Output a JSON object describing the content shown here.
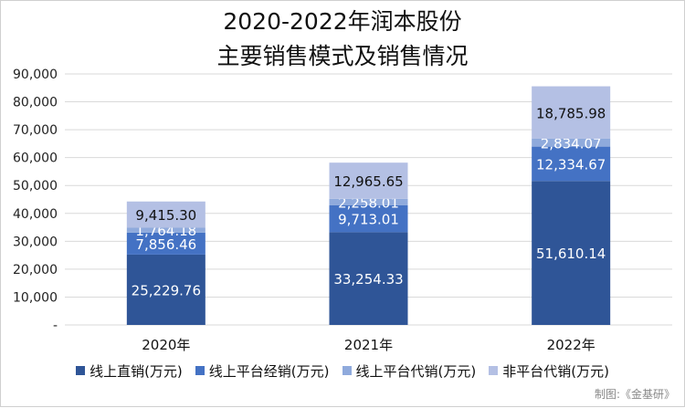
{
  "chart_data": {
    "type": "bar",
    "stacked": true,
    "title_lines": [
      "2020-2022年润本股份",
      "主要销售模式及销售情况"
    ],
    "categories": [
      "2020年",
      "2021年",
      "2022年"
    ],
    "series": [
      {
        "name": "线上直销(万元)",
        "color": "#2f5597",
        "values": [
          25229.76,
          33254.33,
          51610.14
        ],
        "labels": [
          "25,229.76",
          "33,254.33",
          "51,610.14"
        ]
      },
      {
        "name": "线上平台经销(万元)",
        "color": "#4472c4",
        "values": [
          7856.46,
          9713.01,
          12334.67
        ],
        "labels": [
          "7,856.46",
          "9,713.01",
          "12,334.67"
        ]
      },
      {
        "name": "线上平台代销(万元)",
        "color": "#8faadc",
        "values": [
          1764.18,
          2258.01,
          2834.07
        ],
        "labels": [
          "1,764.18",
          "2,258.01",
          "2,834.07"
        ]
      },
      {
        "name": "非平台代销(万元)",
        "color": "#b4c0e4",
        "values": [
          9415.3,
          12965.65,
          18785.98
        ],
        "labels": [
          "9,415.30",
          "12,965.65",
          "18,785.98"
        ]
      }
    ],
    "y_ticks": [
      0,
      10000,
      20000,
      30000,
      40000,
      50000,
      60000,
      70000,
      80000,
      90000
    ],
    "y_tick_labels": [
      "-",
      "10,000",
      "20,000",
      "30,000",
      "40,000",
      "50,000",
      "60,000",
      "70,000",
      "80,000",
      "90,000"
    ],
    "ylim": [
      0,
      90000
    ],
    "grid": true,
    "legend_position": "bottom"
  },
  "source_note": "制图:《金基研》"
}
